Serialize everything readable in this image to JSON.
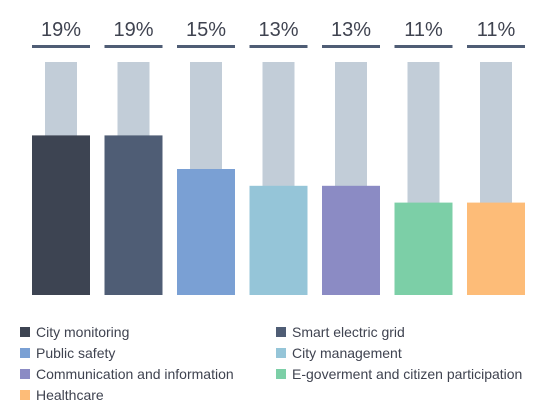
{
  "chart_data": {
    "type": "bar",
    "title": "",
    "xlabel": "",
    "ylabel": "",
    "ylim": [
      0,
      30
    ],
    "grid": false,
    "legend_position": "bottom",
    "categories": [
      "City monitoring",
      "Smart electric grid",
      "Public safety",
      "City management",
      "Communication and information",
      "E-goverment and citizen participation",
      "Healthcare"
    ],
    "values": [
      19,
      19,
      15,
      13,
      13,
      11,
      11
    ],
    "data_labels": [
      "19%",
      "19%",
      "15%",
      "13%",
      "13%",
      "11%",
      "11%"
    ],
    "colors": [
      "#3d4452",
      "#4f5d75",
      "#7aa0d4",
      "#95c5d8",
      "#8b8bc4",
      "#7ccfa7",
      "#fdbc78"
    ],
    "track_color": "#c2cdd8",
    "label_rule_color": "#4f5d75",
    "label_color": "#3f4350"
  }
}
